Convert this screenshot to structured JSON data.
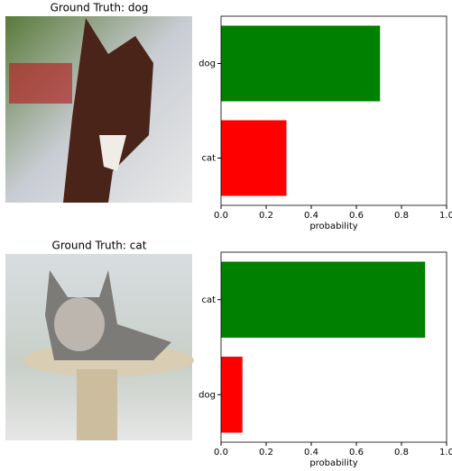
{
  "images": [
    {
      "title": "Ground Truth: dog"
    },
    {
      "title": "Ground Truth: cat"
    }
  ],
  "chart_data": [
    {
      "type": "barh",
      "categories": [
        "cat",
        "dog"
      ],
      "values": [
        0.29,
        0.705
      ],
      "colors": [
        "#ff0000",
        "#008000"
      ],
      "x_label": "probability",
      "xlim": [
        0,
        1
      ],
      "xticks": [
        {
          "value": 0,
          "label": "0.0"
        },
        0.2,
        0.4,
        0.6,
        0.8,
        {
          "value": 1,
          "label": "1.0"
        }
      ]
    },
    {
      "type": "barh",
      "categories": [
        "dog",
        "cat"
      ],
      "values": [
        0.095,
        0.905
      ],
      "colors": [
        "#ff0000",
        "#008000"
      ],
      "x_label": "probability",
      "xlim": [
        0,
        1
      ],
      "xticks": [
        {
          "value": 0,
          "label": "0.0"
        },
        0.2,
        0.4,
        0.6,
        0.8,
        {
          "value": 1,
          "label": "1.0"
        }
      ]
    }
  ]
}
